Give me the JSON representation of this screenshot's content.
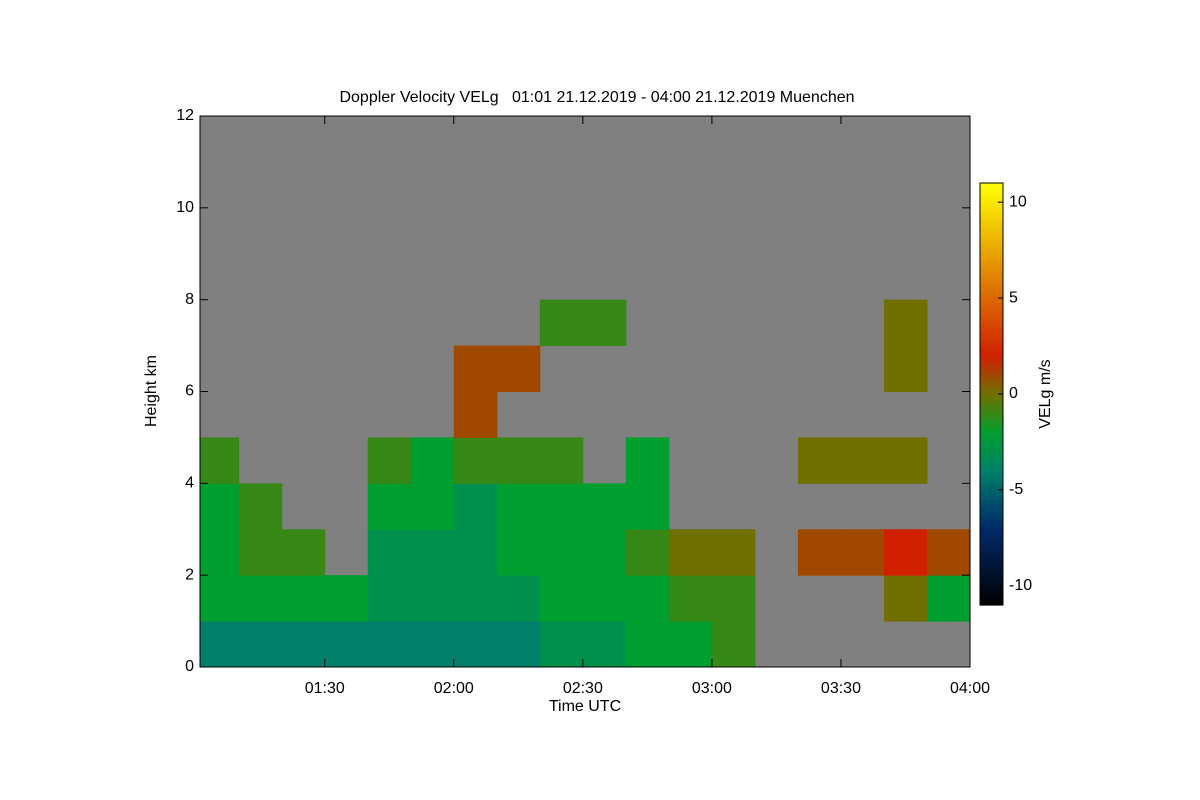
{
  "chart_data": {
    "type": "heatmap",
    "title": "Doppler Velocity VELg   01:01 21.12.2019 - 04:00 21.12.2019 Muenchen",
    "x_label": "Time UTC",
    "y_label": "Height km",
    "colorbar_label": "VELg m/s",
    "xlim": [
      61,
      240
    ],
    "xticks": [
      {
        "value": 90,
        "label": "01:30"
      },
      {
        "value": 120,
        "label": "02:00"
      },
      {
        "value": 150,
        "label": "02:30"
      },
      {
        "value": 180,
        "label": "03:00"
      },
      {
        "value": 210,
        "label": "03:30"
      },
      {
        "value": 240,
        "label": "04:00"
      }
    ],
    "ylim": [
      0,
      12
    ],
    "yticks": [
      0,
      2,
      4,
      6,
      8,
      10,
      12
    ],
    "x_bins": [
      61,
      70,
      80,
      90,
      100,
      110,
      120,
      130,
      140,
      150,
      160,
      170,
      180,
      190,
      200,
      210,
      220,
      230,
      240
    ],
    "y_bins": [
      0,
      1,
      2,
      3,
      4,
      5,
      6,
      7,
      8,
      9,
      10,
      11,
      12
    ],
    "z": [
      [
        -4,
        -4,
        -4,
        -4,
        -4,
        -4,
        -4,
        -4,
        -3,
        -3,
        -2,
        -2,
        -1,
        null,
        null,
        null,
        null,
        null
      ],
      [
        -2,
        -2,
        -2,
        -2,
        -3,
        -3,
        -3,
        -3,
        -2,
        -2,
        -2,
        -1,
        -1,
        null,
        null,
        null,
        0,
        -2
      ],
      [
        -2,
        -1,
        -1,
        null,
        -3,
        -3,
        -3,
        -2,
        -2,
        -2,
        -1,
        0,
        0,
        null,
        1,
        1,
        2,
        1
      ],
      [
        -2,
        -1,
        null,
        null,
        -2,
        -2,
        -3,
        -2,
        -2,
        -2,
        -2,
        null,
        null,
        null,
        null,
        null,
        null,
        null
      ],
      [
        -1,
        null,
        null,
        null,
        -1,
        -2,
        -1,
        -1,
        -1,
        null,
        -2,
        null,
        null,
        null,
        0,
        0,
        0,
        null
      ],
      [
        null,
        null,
        null,
        null,
        null,
        null,
        1,
        null,
        null,
        null,
        null,
        null,
        null,
        null,
        null,
        null,
        null,
        null
      ],
      [
        null,
        null,
        null,
        null,
        null,
        null,
        1,
        1,
        null,
        null,
        null,
        null,
        null,
        null,
        null,
        null,
        0,
        null
      ],
      [
        null,
        null,
        null,
        null,
        null,
        null,
        null,
        null,
        -1,
        -1,
        null,
        null,
        null,
        null,
        null,
        null,
        0,
        null
      ],
      [
        null,
        null,
        null,
        null,
        null,
        null,
        null,
        null,
        null,
        null,
        null,
        null,
        null,
        null,
        null,
        null,
        null,
        null
      ],
      [
        null,
        null,
        null,
        null,
        null,
        null,
        null,
        null,
        null,
        null,
        null,
        null,
        null,
        null,
        null,
        null,
        null,
        null
      ],
      [
        null,
        null,
        null,
        null,
        null,
        null,
        null,
        null,
        null,
        null,
        null,
        null,
        null,
        null,
        null,
        null,
        null,
        null
      ],
      [
        null,
        null,
        null,
        null,
        null,
        null,
        null,
        null,
        null,
        null,
        null,
        null,
        null,
        null,
        null,
        null,
        null,
        null
      ]
    ],
    "no_data_color": "#808080",
    "zlim": [
      -11,
      11
    ],
    "zticks": [
      -10,
      -5,
      0,
      5,
      10
    ],
    "colormap": [
      {
        "value": -11,
        "color": "#000000"
      },
      {
        "value": -7,
        "color": "#002a6a"
      },
      {
        "value": -4,
        "color": "#00806a"
      },
      {
        "value": -2,
        "color": "#00a030"
      },
      {
        "value": 0,
        "color": "#707000"
      },
      {
        "value": 2,
        "color": "#d02000"
      },
      {
        "value": 6,
        "color": "#e08000"
      },
      {
        "value": 11,
        "color": "#ffff00"
      }
    ]
  }
}
